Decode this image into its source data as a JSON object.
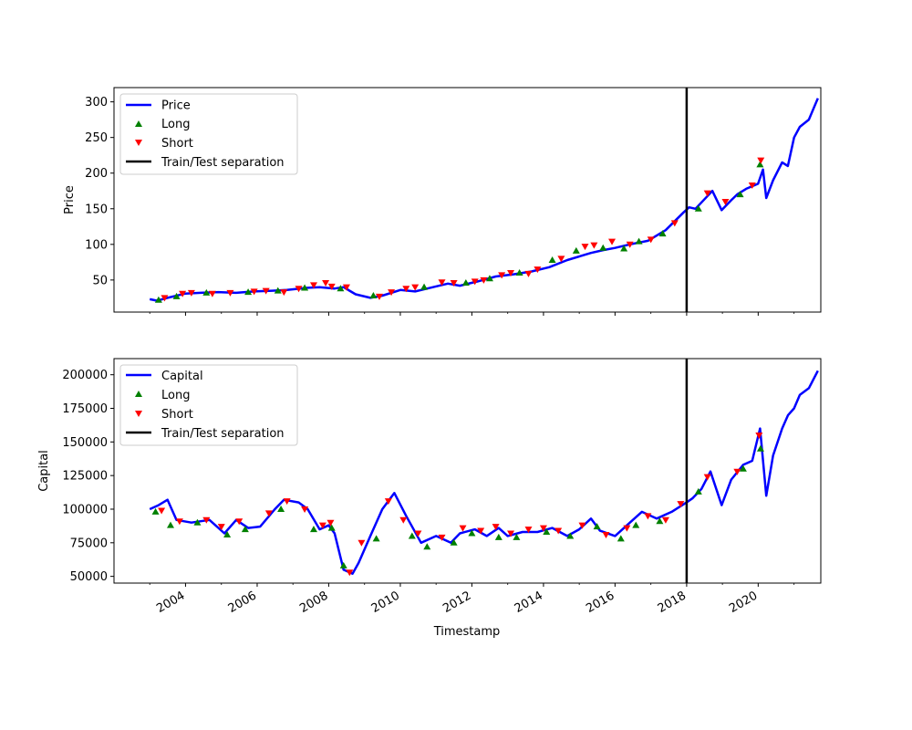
{
  "figure": {
    "xlabel": "Timestamp"
  },
  "colors": {
    "line": "#0000ff",
    "long": "#008000",
    "short": "#ff0000",
    "separator": "#000000"
  },
  "chart_data": [
    {
      "type": "line",
      "ylabel": "Price",
      "xlim": [
        "2002-01-01",
        "2021-10-01"
      ],
      "ylim": [
        5,
        320
      ],
      "yticks": [
        50,
        100,
        150,
        200,
        250,
        300
      ],
      "ytick_labels": [
        "50",
        "100",
        "150",
        "200",
        "250",
        "300"
      ],
      "separator_date": "2018-01-01",
      "grid": false,
      "legend_position": "upper left",
      "legend": [
        "Price",
        "Long",
        "Short",
        "Train/Test separation"
      ],
      "series": [
        {
          "name": "Price",
          "x": [
            "2003-01-01",
            "2003-03-15",
            "2003-07-01",
            "2004-01-01",
            "2004-06-01",
            "2004-12-01",
            "2005-06-01",
            "2005-12-01",
            "2006-06-01",
            "2006-11-01",
            "2007-06-01",
            "2007-10-01",
            "2008-03-01",
            "2008-06-01",
            "2008-10-01",
            "2009-03-01",
            "2009-07-01",
            "2010-01-01",
            "2010-06-01",
            "2010-12-01",
            "2011-05-01",
            "2011-09-01",
            "2012-03-01",
            "2012-09-01",
            "2013-03-01",
            "2013-09-01",
            "2014-03-01",
            "2014-09-01",
            "2015-05-01",
            "2015-09-01",
            "2016-01-01",
            "2016-06-01",
            "2016-12-01",
            "2017-06-01",
            "2017-12-01",
            "2018-01-26",
            "2018-04-01",
            "2018-09-20",
            "2018-12-24",
            "2019-04-01",
            "2019-06-01",
            "2019-09-01",
            "2019-12-31",
            "2020-02-19",
            "2020-03-23",
            "2020-06-01",
            "2020-09-01",
            "2020-10-30",
            "2021-01-01",
            "2021-03-01",
            "2021-06-01",
            "2021-09-01"
          ],
          "y": [
            23,
            21,
            25,
            31,
            32,
            33,
            32,
            34,
            35,
            36,
            39,
            40,
            38,
            40,
            30,
            25,
            28,
            36,
            34,
            40,
            45,
            42,
            48,
            55,
            58,
            62,
            68,
            78,
            88,
            92,
            95,
            100,
            105,
            120,
            145,
            152,
            150,
            175,
            148,
            162,
            170,
            178,
            185,
            205,
            165,
            190,
            215,
            210,
            250,
            265,
            275,
            305
          ]
        }
      ],
      "long_signals": {
        "x": [
          "2003-04-01",
          "2003-10-01",
          "2004-08-01",
          "2005-10-01",
          "2006-08-01",
          "2007-05-01",
          "2008-05-01",
          "2009-04-01",
          "2010-09-01",
          "2011-11-01",
          "2012-07-01",
          "2013-05-01",
          "2014-04-01",
          "2014-12-01",
          "2015-09-01",
          "2016-04-01",
          "2016-09-01",
          "2017-05-01",
          "2018-05-01",
          "2019-07-01",
          "2020-01-20"
        ],
        "y": [
          22,
          27,
          32,
          33,
          35,
          39,
          38,
          28,
          40,
          46,
          52,
          60,
          78,
          91,
          95,
          94,
          104,
          115,
          150,
          170,
          212
        ]
      },
      "short_signals": {
        "x": [
          "2003-06-01",
          "2003-12-01",
          "2004-03-01",
          "2004-10-01",
          "2005-04-01",
          "2005-12-01",
          "2006-04-01",
          "2006-10-01",
          "2007-03-01",
          "2007-08-01",
          "2007-12-01",
          "2008-02-01",
          "2008-07-01",
          "2009-06-01",
          "2009-10-01",
          "2010-03-01",
          "2010-06-01",
          "2011-03-01",
          "2011-07-01",
          "2012-02-01",
          "2012-05-01",
          "2012-11-01",
          "2013-02-01",
          "2013-08-01",
          "2013-11-01",
          "2014-07-01",
          "2015-03-01",
          "2015-06-01",
          "2015-12-01",
          "2016-06-01",
          "2017-01-01",
          "2017-09-01",
          "2018-08-01",
          "2019-02-01",
          "2019-11-01",
          "2020-01-28"
        ],
        "y": [
          25,
          31,
          32,
          31,
          32,
          34,
          35,
          33,
          38,
          43,
          46,
          41,
          40,
          27,
          33,
          38,
          40,
          47,
          46,
          48,
          50,
          57,
          60,
          59,
          65,
          80,
          97,
          99,
          104,
          100,
          107,
          130,
          172,
          160,
          183,
          218
        ]
      }
    },
    {
      "type": "line",
      "ylabel": "Capital",
      "xlim": [
        "2002-01-01",
        "2021-10-01"
      ],
      "ylim": [
        45000,
        212000
      ],
      "yticks": [
        50000,
        75000,
        100000,
        125000,
        150000,
        175000,
        200000
      ],
      "ytick_labels": [
        "50000",
        "75000",
        "100000",
        "125000",
        "150000",
        "175000",
        "200000"
      ],
      "xticks": [
        "2004-01-01",
        "2006-01-01",
        "2008-01-01",
        "2010-01-01",
        "2012-01-01",
        "2014-01-01",
        "2016-01-01",
        "2018-01-01",
        "2020-01-01"
      ],
      "xtick_labels": [
        "2004",
        "2006",
        "2008",
        "2010",
        "2012",
        "2014",
        "2016",
        "2018",
        "2020"
      ],
      "separator_date": "2018-01-01",
      "grid": false,
      "legend_position": "upper left",
      "legend": [
        "Capital",
        "Long",
        "Short",
        "Train/Test separation"
      ],
      "series": [
        {
          "name": "Capital",
          "x": [
            "2003-01-01",
            "2003-04-01",
            "2003-07-01",
            "2003-10-01",
            "2004-03-01",
            "2004-09-01",
            "2005-02-01",
            "2005-06-01",
            "2005-10-01",
            "2006-02-01",
            "2006-07-01",
            "2006-10-01",
            "2007-03-01",
            "2007-06-01",
            "2007-10-01",
            "2008-01-01",
            "2008-03-01",
            "2008-06-01",
            "2008-09-01",
            "2008-11-01",
            "2009-03-01",
            "2009-07-01",
            "2009-11-01",
            "2010-03-01",
            "2010-08-01",
            "2011-01-01",
            "2011-06-01",
            "2011-09-01",
            "2012-02-01",
            "2012-06-01",
            "2012-10-01",
            "2013-01-01",
            "2013-06-01",
            "2013-11-01",
            "2014-04-01",
            "2014-09-01",
            "2015-01-01",
            "2015-05-01",
            "2015-08-01",
            "2016-01-01",
            "2016-06-01",
            "2016-10-01",
            "2017-03-01",
            "2017-08-01",
            "2017-12-31",
            "2018-03-01",
            "2018-06-01",
            "2018-09-01",
            "2018-12-24",
            "2019-04-01",
            "2019-08-01",
            "2019-11-01",
            "2020-01-20",
            "2020-03-23",
            "2020-06-01",
            "2020-09-01",
            "2020-11-01",
            "2021-01-01",
            "2021-03-01",
            "2021-06-01",
            "2021-09-01"
          ],
          "y": [
            100000,
            103000,
            107000,
            92000,
            90000,
            92000,
            82000,
            92000,
            86000,
            87000,
            100000,
            107000,
            105000,
            100000,
            85000,
            88000,
            82000,
            55000,
            52000,
            60000,
            80000,
            100000,
            112000,
            95000,
            75000,
            80000,
            75000,
            82000,
            85000,
            80000,
            86000,
            80000,
            83000,
            83000,
            86000,
            80000,
            85000,
            93000,
            84000,
            80000,
            90000,
            98000,
            93000,
            98000,
            105000,
            108000,
            115000,
            128000,
            103000,
            122000,
            133000,
            136000,
            160000,
            110000,
            140000,
            160000,
            170000,
            175000,
            185000,
            190000,
            203000
          ]
        }
      ],
      "long_signals": {
        "x": [
          "2003-03-01",
          "2003-08-01",
          "2004-05-01",
          "2005-03-01",
          "2005-09-01",
          "2006-09-01",
          "2007-08-01",
          "2008-02-01",
          "2008-06-01",
          "2009-05-01",
          "2010-05-01",
          "2010-10-01",
          "2011-07-01",
          "2012-01-01",
          "2012-10-01",
          "2013-04-01",
          "2014-02-01",
          "2014-10-01",
          "2015-07-01",
          "2016-03-01",
          "2016-08-01",
          "2017-04-01",
          "2018-05-01",
          "2019-08-01",
          "2020-01-25"
        ],
        "y": [
          98000,
          88000,
          90000,
          81000,
          85000,
          100000,
          85000,
          86000,
          58000,
          78000,
          80000,
          72000,
          75000,
          82000,
          79000,
          79000,
          83000,
          80000,
          87000,
          78000,
          88000,
          91000,
          113000,
          130000,
          145000
        ]
      },
      "short_signals": {
        "x": [
          "2003-05-01",
          "2003-11-01",
          "2004-08-01",
          "2005-01-01",
          "2005-07-01",
          "2006-05-01",
          "2006-11-01",
          "2007-05-01",
          "2007-11-01",
          "2008-01-20",
          "2008-08-01",
          "2008-12-01",
          "2009-09-01",
          "2010-02-01",
          "2010-07-01",
          "2011-03-01",
          "2011-10-01",
          "2012-04-01",
          "2012-09-01",
          "2013-02-01",
          "2013-08-01",
          "2014-01-01",
          "2014-06-01",
          "2015-02-01",
          "2015-10-01",
          "2016-05-01",
          "2016-12-01",
          "2017-06-01",
          "2017-11-01",
          "2018-08-01",
          "2019-06-01",
          "2020-01-10"
        ],
        "y": [
          99000,
          91000,
          92000,
          87000,
          91000,
          97000,
          106000,
          100000,
          88000,
          90000,
          53000,
          75000,
          106000,
          92000,
          82000,
          79000,
          86000,
          84000,
          87000,
          82000,
          85000,
          86000,
          84000,
          88000,
          81000,
          86000,
          95000,
          92000,
          104000,
          124000,
          128000,
          155000
        ]
      }
    }
  ]
}
